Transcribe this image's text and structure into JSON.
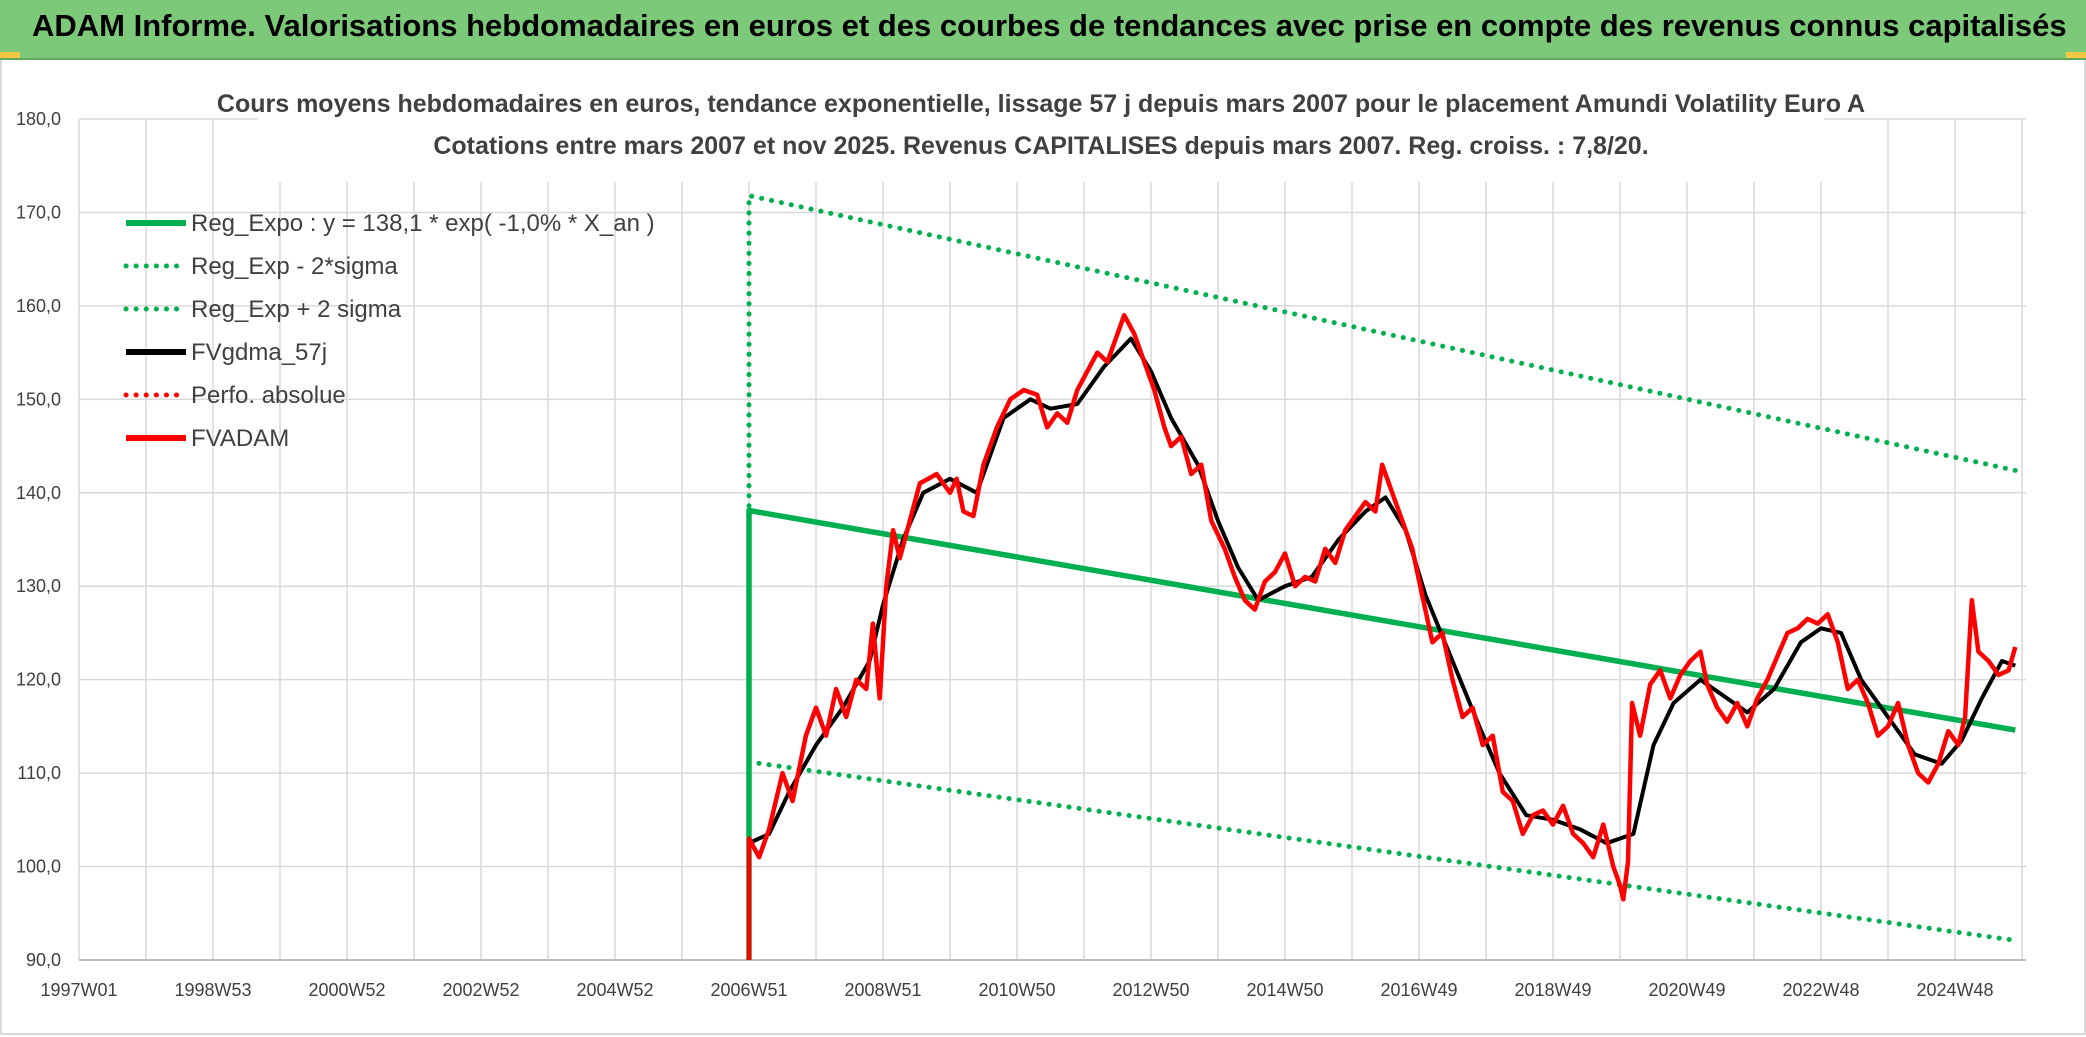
{
  "banner": {
    "title": "ADAM Informe. Valorisations hebdomadaires en euros et des courbes de tendances avec prise en compte des revenus connus capitalisés",
    "background_color": "#7dc97a",
    "corner_color": "#f2c744"
  },
  "chart_data": {
    "type": "line",
    "title": "Cours moyens hebdomadaires en euros, tendance exponentielle, lissage 57 j depuis mars 2007 pour le placement Amundi Volatility Euro A",
    "subtitle": "Cotations entre mars 2007 et nov 2025. Revenus CAPITALISES depuis mars 2007. Reg. croiss. : 7,8/20.",
    "xlabel": "",
    "ylabel": "",
    "x_unit": "year (decimal)",
    "xlim": [
      1997.0,
      2026.0
    ],
    "ylim": [
      90.0,
      180.0
    ],
    "y_ticks": [
      90,
      100,
      110,
      120,
      130,
      140,
      150,
      160,
      170,
      180
    ],
    "y_tick_labels": [
      "90,0",
      "100,0",
      "110,0",
      "120,0",
      "130,0",
      "140,0",
      "150,0",
      "160,0",
      "170,0",
      "180,0"
    ],
    "x_ticks": [
      {
        "x": 1997.0,
        "label": "1997W01"
      },
      {
        "x": 1999.0,
        "label": "1998W53"
      },
      {
        "x": 2001.0,
        "label": "2000W52"
      },
      {
        "x": 2003.0,
        "label": "2002W52"
      },
      {
        "x": 2005.0,
        "label": "2004W52"
      },
      {
        "x": 2007.0,
        "label": "2006W51"
      },
      {
        "x": 2009.0,
        "label": "2008W51"
      },
      {
        "x": 2011.0,
        "label": "2010W50"
      },
      {
        "x": 2013.0,
        "label": "2012W50"
      },
      {
        "x": 2015.0,
        "label": "2014W50"
      },
      {
        "x": 2017.0,
        "label": "2016W49"
      },
      {
        "x": 2019.0,
        "label": "2018W49"
      },
      {
        "x": 2021.0,
        "label": "2020W49"
      },
      {
        "x": 2023.0,
        "label": "2022W48"
      },
      {
        "x": 2025.0,
        "label": "2024W48"
      }
    ],
    "grid": true,
    "legend_position": "top-left",
    "series": [
      {
        "name": "Reg_Expo : y = 138,1 * exp( -1,0% *  X_an )",
        "color": "#00b050",
        "style": "solid",
        "points": [
          [
            2007.0,
            90.0
          ],
          [
            2007.0,
            138.1
          ],
          [
            2025.9,
            114.6
          ]
        ]
      },
      {
        "name": "Reg_Exp - 2*sigma",
        "color": "#00b050",
        "style": "dotted",
        "points": [
          [
            2007.0,
            111.2
          ],
          [
            2025.9,
            92.1
          ]
        ]
      },
      {
        "name": "Reg_Exp + 2 sigma",
        "color": "#00b050",
        "style": "dotted",
        "points": [
          [
            2007.0,
            138.6
          ],
          [
            2007.0,
            171.8
          ],
          [
            2025.9,
            142.4
          ]
        ]
      },
      {
        "name": "FVgdma_57j",
        "color": "#000000",
        "style": "solid",
        "points": [
          [
            2007.0,
            102.5
          ],
          [
            2007.3,
            103.5
          ],
          [
            2007.6,
            108.0
          ],
          [
            2008.0,
            113.0
          ],
          [
            2008.4,
            117.0
          ],
          [
            2008.8,
            122.0
          ],
          [
            2009.0,
            128.0
          ],
          [
            2009.3,
            135.0
          ],
          [
            2009.6,
            140.0
          ],
          [
            2010.0,
            141.5
          ],
          [
            2010.4,
            140.0
          ],
          [
            2010.8,
            148.0
          ],
          [
            2011.2,
            150.0
          ],
          [
            2011.5,
            149.0
          ],
          [
            2011.9,
            149.5
          ],
          [
            2012.3,
            153.5
          ],
          [
            2012.7,
            156.5
          ],
          [
            2013.0,
            153.0
          ],
          [
            2013.3,
            148.0
          ],
          [
            2013.7,
            143.0
          ],
          [
            2014.0,
            137.0
          ],
          [
            2014.3,
            132.0
          ],
          [
            2014.6,
            128.5
          ],
          [
            2015.0,
            130.0
          ],
          [
            2015.4,
            131.0
          ],
          [
            2015.8,
            135.0
          ],
          [
            2016.2,
            138.0
          ],
          [
            2016.5,
            139.5
          ],
          [
            2016.8,
            136.0
          ],
          [
            2017.1,
            129.0
          ],
          [
            2017.5,
            122.0
          ],
          [
            2017.9,
            115.0
          ],
          [
            2018.2,
            110.0
          ],
          [
            2018.6,
            105.5
          ],
          [
            2019.0,
            105.0
          ],
          [
            2019.4,
            104.0
          ],
          [
            2019.8,
            102.5
          ],
          [
            2020.2,
            103.5
          ],
          [
            2020.5,
            113.0
          ],
          [
            2020.8,
            117.5
          ],
          [
            2021.2,
            120.0
          ],
          [
            2021.6,
            118.0
          ],
          [
            2021.9,
            116.5
          ],
          [
            2022.3,
            119.0
          ],
          [
            2022.7,
            124.0
          ],
          [
            2023.0,
            125.5
          ],
          [
            2023.3,
            125.0
          ],
          [
            2023.6,
            120.0
          ],
          [
            2024.0,
            116.0
          ],
          [
            2024.4,
            112.0
          ],
          [
            2024.8,
            111.0
          ],
          [
            2025.1,
            113.5
          ],
          [
            2025.4,
            118.0
          ],
          [
            2025.7,
            122.0
          ],
          [
            2025.9,
            121.5
          ]
        ]
      },
      {
        "name": "Perfo. absolue",
        "color": "#ff0000",
        "style": "dotted",
        "points": []
      },
      {
        "name": "FVADAM",
        "color": "#ff0000",
        "style": "solid",
        "points": [
          [
            2007.0,
            90.0
          ],
          [
            2007.0,
            103.0
          ],
          [
            2007.15,
            101.0
          ],
          [
            2007.3,
            104.0
          ],
          [
            2007.5,
            110.0
          ],
          [
            2007.65,
            107.0
          ],
          [
            2007.85,
            114.0
          ],
          [
            2008.0,
            117.0
          ],
          [
            2008.15,
            114.0
          ],
          [
            2008.3,
            119.0
          ],
          [
            2008.45,
            116.0
          ],
          [
            2008.6,
            120.0
          ],
          [
            2008.75,
            119.0
          ],
          [
            2008.85,
            126.0
          ],
          [
            2008.95,
            118.0
          ],
          [
            2009.05,
            130.0
          ],
          [
            2009.15,
            136.0
          ],
          [
            2009.25,
            133.0
          ],
          [
            2009.4,
            137.0
          ],
          [
            2009.55,
            141.0
          ],
          [
            2009.8,
            142.0
          ],
          [
            2010.0,
            140.0
          ],
          [
            2010.1,
            141.5
          ],
          [
            2010.2,
            138.0
          ],
          [
            2010.35,
            137.5
          ],
          [
            2010.5,
            143.0
          ],
          [
            2010.7,
            147.0
          ],
          [
            2010.9,
            150.0
          ],
          [
            2011.1,
            151.0
          ],
          [
            2011.3,
            150.5
          ],
          [
            2011.45,
            147.0
          ],
          [
            2011.6,
            148.5
          ],
          [
            2011.75,
            147.5
          ],
          [
            2011.9,
            151.0
          ],
          [
            2012.05,
            153.0
          ],
          [
            2012.2,
            155.0
          ],
          [
            2012.35,
            154.0
          ],
          [
            2012.5,
            157.0
          ],
          [
            2012.6,
            159.0
          ],
          [
            2012.75,
            157.0
          ],
          [
            2012.9,
            154.0
          ],
          [
            2013.05,
            151.0
          ],
          [
            2013.2,
            147.0
          ],
          [
            2013.3,
            145.0
          ],
          [
            2013.45,
            146.0
          ],
          [
            2013.6,
            142.0
          ],
          [
            2013.75,
            143.0
          ],
          [
            2013.9,
            137.0
          ],
          [
            2014.1,
            134.0
          ],
          [
            2014.25,
            131.0
          ],
          [
            2014.4,
            128.5
          ],
          [
            2014.55,
            127.5
          ],
          [
            2014.7,
            130.5
          ],
          [
            2014.85,
            131.5
          ],
          [
            2015.0,
            133.5
          ],
          [
            2015.15,
            130.0
          ],
          [
            2015.3,
            131.0
          ],
          [
            2015.45,
            130.5
          ],
          [
            2015.6,
            134.0
          ],
          [
            2015.75,
            132.5
          ],
          [
            2015.9,
            136.0
          ],
          [
            2016.05,
            137.5
          ],
          [
            2016.2,
            139.0
          ],
          [
            2016.35,
            138.0
          ],
          [
            2016.45,
            143.0
          ],
          [
            2016.6,
            140.0
          ],
          [
            2016.75,
            137.0
          ],
          [
            2016.9,
            134.0
          ],
          [
            2017.05,
            129.0
          ],
          [
            2017.2,
            124.0
          ],
          [
            2017.35,
            125.0
          ],
          [
            2017.5,
            120.0
          ],
          [
            2017.65,
            116.0
          ],
          [
            2017.8,
            117.0
          ],
          [
            2017.95,
            113.0
          ],
          [
            2018.1,
            114.0
          ],
          [
            2018.25,
            108.0
          ],
          [
            2018.4,
            107.0
          ],
          [
            2018.55,
            103.5
          ],
          [
            2018.7,
            105.5
          ],
          [
            2018.85,
            106.0
          ],
          [
            2019.0,
            104.5
          ],
          [
            2019.15,
            106.5
          ],
          [
            2019.3,
            103.5
          ],
          [
            2019.45,
            102.5
          ],
          [
            2019.6,
            101.0
          ],
          [
            2019.75,
            104.5
          ],
          [
            2019.9,
            100.0
          ],
          [
            2020.0,
            98.0
          ],
          [
            2020.05,
            96.5
          ],
          [
            2020.12,
            100.5
          ],
          [
            2020.18,
            117.5
          ],
          [
            2020.3,
            114.0
          ],
          [
            2020.45,
            119.5
          ],
          [
            2020.6,
            121.0
          ],
          [
            2020.75,
            118.0
          ],
          [
            2020.9,
            120.5
          ],
          [
            2021.05,
            122.0
          ],
          [
            2021.2,
            123.0
          ],
          [
            2021.3,
            119.5
          ],
          [
            2021.45,
            117.0
          ],
          [
            2021.6,
            115.5
          ],
          [
            2021.75,
            117.5
          ],
          [
            2021.9,
            115.0
          ],
          [
            2022.05,
            118.0
          ],
          [
            2022.2,
            120.0
          ],
          [
            2022.35,
            122.5
          ],
          [
            2022.5,
            125.0
          ],
          [
            2022.65,
            125.5
          ],
          [
            2022.8,
            126.5
          ],
          [
            2022.95,
            126.0
          ],
          [
            2023.1,
            127.0
          ],
          [
            2023.25,
            124.0
          ],
          [
            2023.4,
            119.0
          ],
          [
            2023.55,
            120.0
          ],
          [
            2023.7,
            117.5
          ],
          [
            2023.85,
            114.0
          ],
          [
            2024.0,
            115.0
          ],
          [
            2024.15,
            117.5
          ],
          [
            2024.3,
            113.0
          ],
          [
            2024.45,
            110.0
          ],
          [
            2024.6,
            109.0
          ],
          [
            2024.75,
            111.0
          ],
          [
            2024.9,
            114.5
          ],
          [
            2025.05,
            113.0
          ],
          [
            2025.15,
            116.0
          ],
          [
            2025.25,
            128.5
          ],
          [
            2025.35,
            123.0
          ],
          [
            2025.5,
            122.0
          ],
          [
            2025.65,
            120.5
          ],
          [
            2025.8,
            121.0
          ],
          [
            2025.9,
            123.5
          ]
        ]
      }
    ]
  }
}
